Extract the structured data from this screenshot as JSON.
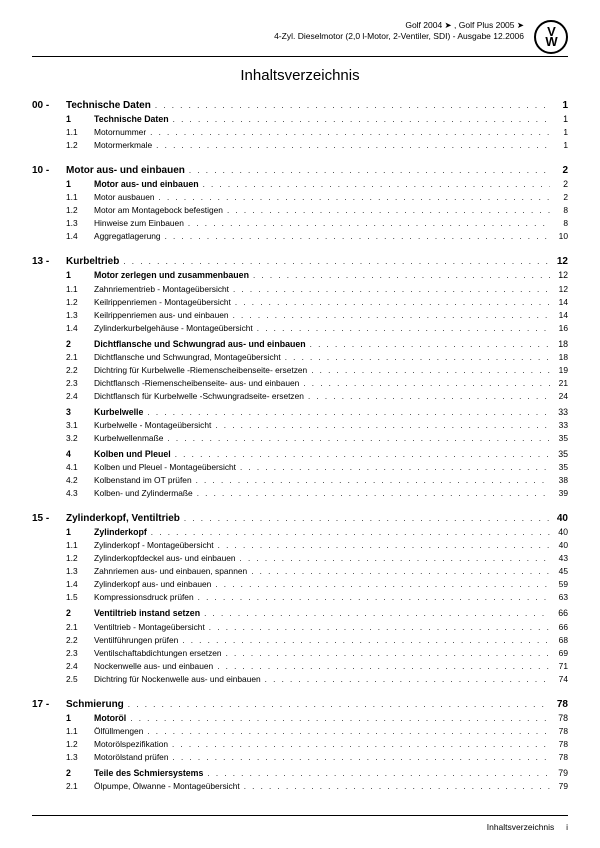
{
  "header": {
    "line1": "Golf 2004 ➤ , Golf Plus 2005 ➤",
    "line2": "4-Zyl. Dieselmotor (2,0 l-Motor, 2-Ventiler, SDI) - Ausgabe 12.2006"
  },
  "title": "Inhaltsverzeichnis",
  "footer": {
    "label": "Inhaltsverzeichnis",
    "page": "i"
  },
  "sections": [
    {
      "num": "00 -",
      "label": "Technische Daten",
      "page": "1",
      "items": [
        {
          "lvl": 1,
          "num": "1",
          "label": "Technische Daten",
          "page": "1"
        },
        {
          "lvl": 2,
          "num": "1.1",
          "label": "Motornummer",
          "page": "1"
        },
        {
          "lvl": 2,
          "num": "1.2",
          "label": "Motormerkmale",
          "page": "1"
        }
      ]
    },
    {
      "num": "10 -",
      "label": "Motor aus- und einbauen",
      "page": "2",
      "items": [
        {
          "lvl": 1,
          "num": "1",
          "label": "Motor aus- und einbauen",
          "page": "2"
        },
        {
          "lvl": 2,
          "num": "1.1",
          "label": "Motor ausbauen",
          "page": "2"
        },
        {
          "lvl": 2,
          "num": "1.2",
          "label": "Motor am Montagebock befestigen",
          "page": "8"
        },
        {
          "lvl": 2,
          "num": "1.3",
          "label": "Hinweise zum Einbauen",
          "page": "8"
        },
        {
          "lvl": 2,
          "num": "1.4",
          "label": "Aggregatlagerung",
          "page": "10"
        }
      ]
    },
    {
      "num": "13 -",
      "label": "Kurbeltrieb",
      "page": "12",
      "items": [
        {
          "lvl": 1,
          "num": "1",
          "label": "Motor zerlegen und zusammenbauen",
          "page": "12"
        },
        {
          "lvl": 2,
          "num": "1.1",
          "label": "Zahnriementrieb - Montageübersicht",
          "page": "12"
        },
        {
          "lvl": 2,
          "num": "1.2",
          "label": "Keilrippenriemen - Montageübersicht",
          "page": "14"
        },
        {
          "lvl": 2,
          "num": "1.3",
          "label": "Keilrippenriemen aus- und einbauen",
          "page": "14"
        },
        {
          "lvl": 2,
          "num": "1.4",
          "label": "Zylinderkurbelgehäuse - Montageübersicht",
          "page": "16"
        },
        {
          "lvl": 1,
          "num": "2",
          "label": "Dichtflansche und Schwungrad aus- und einbauen",
          "page": "18",
          "gap": true
        },
        {
          "lvl": 2,
          "num": "2.1",
          "label": "Dichtflansche und Schwungrad, Montageübersicht",
          "page": "18"
        },
        {
          "lvl": 2,
          "num": "2.2",
          "label": "Dichtring für Kurbelwelle -Riemenscheibenseite- ersetzen",
          "page": "19"
        },
        {
          "lvl": 2,
          "num": "2.3",
          "label": "Dichtflansch -Riemenscheibenseite- aus- und einbauen",
          "page": "21"
        },
        {
          "lvl": 2,
          "num": "2.4",
          "label": "Dichtflansch für Kurbelwelle -Schwungradseite- ersetzen",
          "page": "24"
        },
        {
          "lvl": 1,
          "num": "3",
          "label": "Kurbelwelle",
          "page": "33",
          "gap": true
        },
        {
          "lvl": 2,
          "num": "3.1",
          "label": "Kurbelwelle - Montageübersicht",
          "page": "33"
        },
        {
          "lvl": 2,
          "num": "3.2",
          "label": "Kurbelwellenmaße",
          "page": "35"
        },
        {
          "lvl": 1,
          "num": "4",
          "label": "Kolben und Pleuel",
          "page": "35",
          "gap": true
        },
        {
          "lvl": 2,
          "num": "4.1",
          "label": "Kolben und Pleuel - Montageübersicht",
          "page": "35"
        },
        {
          "lvl": 2,
          "num": "4.2",
          "label": "Kolbenstand im OT prüfen",
          "page": "38"
        },
        {
          "lvl": 2,
          "num": "4.3",
          "label": "Kolben- und Zylindermaße",
          "page": "39"
        }
      ]
    },
    {
      "num": "15 -",
      "label": "Zylinderkopf, Ventiltrieb",
      "page": "40",
      "items": [
        {
          "lvl": 1,
          "num": "1",
          "label": "Zylinderkopf",
          "page": "40"
        },
        {
          "lvl": 2,
          "num": "1.1",
          "label": "Zylinderkopf - Montageübersicht",
          "page": "40"
        },
        {
          "lvl": 2,
          "num": "1.2",
          "label": "Zylinderkopfdeckel aus- und einbauen",
          "page": "43"
        },
        {
          "lvl": 2,
          "num": "1.3",
          "label": "Zahnriemen aus- und einbauen, spannen",
          "page": "45"
        },
        {
          "lvl": 2,
          "num": "1.4",
          "label": "Zylinderkopf aus- und einbauen",
          "page": "59"
        },
        {
          "lvl": 2,
          "num": "1.5",
          "label": "Kompressionsdruck prüfen",
          "page": "63"
        },
        {
          "lvl": 1,
          "num": "2",
          "label": "Ventiltrieb instand setzen",
          "page": "66",
          "gap": true
        },
        {
          "lvl": 2,
          "num": "2.1",
          "label": "Ventiltrieb - Montageübersicht",
          "page": "66"
        },
        {
          "lvl": 2,
          "num": "2.2",
          "label": "Ventilführungen prüfen",
          "page": "68"
        },
        {
          "lvl": 2,
          "num": "2.3",
          "label": "Ventilschaftabdichtungen ersetzen",
          "page": "69"
        },
        {
          "lvl": 2,
          "num": "2.4",
          "label": "Nockenwelle aus- und einbauen",
          "page": "71"
        },
        {
          "lvl": 2,
          "num": "2.5",
          "label": "Dichtring für Nockenwelle aus- und einbauen",
          "page": "74"
        }
      ]
    },
    {
      "num": "17 -",
      "label": "Schmierung",
      "page": "78",
      "items": [
        {
          "lvl": 1,
          "num": "1",
          "label": "Motoröl",
          "page": "78"
        },
        {
          "lvl": 2,
          "num": "1.1",
          "label": "Ölfüllmengen",
          "page": "78"
        },
        {
          "lvl": 2,
          "num": "1.2",
          "label": "Motorölspezifikation",
          "page": "78"
        },
        {
          "lvl": 2,
          "num": "1.3",
          "label": "Motorölstand prüfen",
          "page": "78"
        },
        {
          "lvl": 1,
          "num": "2",
          "label": "Teile des Schmiersystems",
          "page": "79",
          "gap": true
        },
        {
          "lvl": 2,
          "num": "2.1",
          "label": "Ölpumpe, Ölwanne - Montageübersicht",
          "page": "79"
        }
      ]
    }
  ]
}
